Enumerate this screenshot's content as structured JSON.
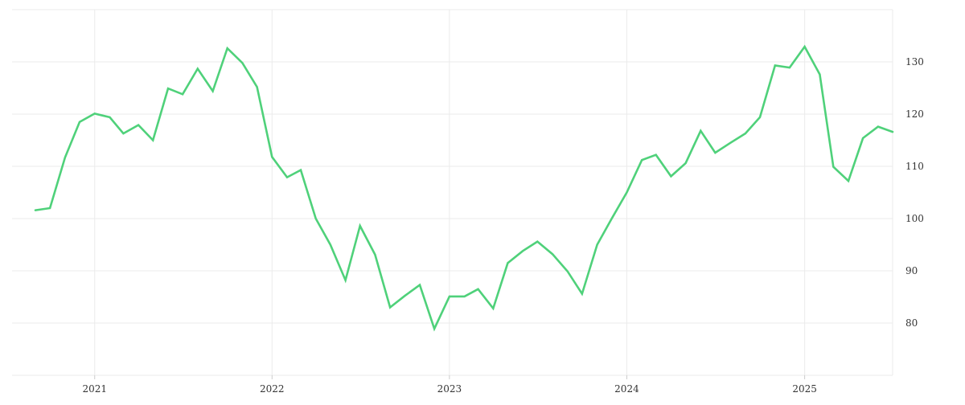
{
  "chart_data": {
    "type": "line",
    "title": "",
    "xlabel": "",
    "ylabel": "",
    "x_tick_labels": [
      "2021",
      "2022",
      "2023",
      "2024",
      "2025"
    ],
    "y_tick_labels": [
      "80",
      "90",
      "100",
      "110",
      "120",
      "130"
    ],
    "y_ticks": [
      80,
      90,
      100,
      110,
      120,
      130
    ],
    "ylim": [
      70,
      140
    ],
    "xlim": [
      "2020-07-15",
      "2025-07-01"
    ],
    "y_axis_position": "right",
    "grid": true,
    "legend": "none",
    "line_color": "#4fd17a",
    "grid_color": "#ebebeb",
    "series": [
      {
        "x": [
          "2020-09-01",
          "2020-10-01",
          "2020-11-01",
          "2020-12-01",
          "2021-01-01",
          "2021-02-01",
          "2021-03-01",
          "2021-04-01",
          "2021-05-01",
          "2021-06-01",
          "2021-07-01",
          "2021-08-01",
          "2021-09-01",
          "2021-10-01",
          "2021-11-01",
          "2021-12-01",
          "2022-01-01",
          "2022-02-01",
          "2022-03-01",
          "2022-04-01",
          "2022-05-01",
          "2022-06-01",
          "2022-07-01",
          "2022-08-01",
          "2022-09-01",
          "2022-10-01",
          "2022-11-01",
          "2022-12-01",
          "2023-01-01",
          "2023-02-01",
          "2023-03-01",
          "2023-04-01",
          "2023-05-01",
          "2023-06-01",
          "2023-07-01",
          "2023-08-01",
          "2023-09-01",
          "2023-10-01",
          "2023-11-01",
          "2023-12-01",
          "2024-01-01",
          "2024-02-01",
          "2024-03-01",
          "2024-04-01",
          "2024-05-01",
          "2024-06-01",
          "2024-07-01",
          "2024-08-01",
          "2024-09-01",
          "2024-10-01",
          "2024-11-01",
          "2024-12-01",
          "2025-01-01",
          "2025-02-01",
          "2025-03-01",
          "2025-04-01",
          "2025-05-01",
          "2025-06-01",
          "2025-07-01"
        ],
        "values": [
          101.6,
          102.0,
          111.7,
          118.5,
          120.1,
          119.4,
          116.3,
          117.9,
          115.0,
          124.9,
          123.8,
          128.7,
          124.4,
          132.6,
          129.8,
          125.2,
          111.8,
          107.9,
          109.3,
          100.0,
          95.0,
          88.2,
          98.6,
          93.1,
          83.0,
          85.2,
          87.3,
          78.9,
          85.1,
          85.1,
          86.5,
          82.8,
          91.5,
          93.8,
          95.6,
          93.2,
          89.9,
          85.6,
          95.0,
          100.0,
          105.0,
          111.2,
          112.2,
          108.1,
          110.6,
          116.8,
          112.6,
          114.5,
          116.3,
          119.4,
          129.3,
          128.9,
          132.9,
          127.6,
          109.9,
          107.2,
          115.4,
          117.6,
          116.6
        ]
      }
    ]
  }
}
